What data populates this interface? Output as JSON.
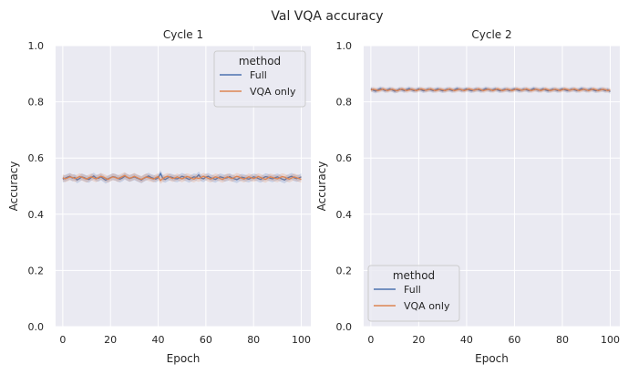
{
  "figure": {
    "title": "Val VQA accuracy"
  },
  "chart_data": [
    {
      "type": "line",
      "title": "Cycle 1",
      "xlabel": "Epoch",
      "ylabel": "Accuracy",
      "xlim": [
        -3,
        104
      ],
      "ylim": [
        0.0,
        1.0
      ],
      "xticks": [
        0,
        20,
        40,
        60,
        80,
        100
      ],
      "yticks": [
        0.0,
        0.2,
        0.4,
        0.6,
        0.8,
        1.0
      ],
      "xtick_labels": [
        "0",
        "20",
        "40",
        "60",
        "80",
        "100"
      ],
      "ytick_labels": [
        "0.0",
        "0.2",
        "0.4",
        "0.6",
        "0.8",
        "1.0"
      ],
      "grid": true,
      "legend": {
        "title": "method",
        "position": "top-right"
      },
      "series": [
        {
          "name": "Full",
          "color": "#4c72b0",
          "mean": 0.53,
          "band": 0.012,
          "values": [
            0.525,
            0.528,
            0.532,
            0.535,
            0.529,
            0.531,
            0.522,
            0.527,
            0.533,
            0.53,
            0.526,
            0.524,
            0.531,
            0.536,
            0.529,
            0.528,
            0.533,
            0.527,
            0.521,
            0.526,
            0.53,
            0.534,
            0.532,
            0.528,
            0.525,
            0.529,
            0.535,
            0.531,
            0.527,
            0.53,
            0.533,
            0.529,
            0.526,
            0.522,
            0.528,
            0.532,
            0.536,
            0.531,
            0.528,
            0.525,
            0.53,
            0.545,
            0.527,
            0.524,
            0.529,
            0.533,
            0.531,
            0.527,
            0.526,
            0.53,
            0.535,
            0.532,
            0.528,
            0.524,
            0.529,
            0.533,
            0.531,
            0.54,
            0.529,
            0.526,
            0.532,
            0.535,
            0.53,
            0.527,
            0.524,
            0.529,
            0.533,
            0.531,
            0.528,
            0.53,
            0.534,
            0.529,
            0.526,
            0.523,
            0.528,
            0.532,
            0.53,
            0.527,
            0.525,
            0.529,
            0.533,
            0.531,
            0.527,
            0.524,
            0.529,
            0.534,
            0.532,
            0.528,
            0.526,
            0.53,
            0.533,
            0.529,
            0.525,
            0.522,
            0.528,
            0.532,
            0.535,
            0.53,
            0.527,
            0.529,
            0.533
          ]
        },
        {
          "name": "VQA only",
          "color": "#dd8452",
          "mean": 0.53,
          "band": 0.012,
          "values": [
            0.53,
            0.526,
            0.529,
            0.533,
            0.531,
            0.527,
            0.529,
            0.534,
            0.532,
            0.528,
            0.525,
            0.53,
            0.533,
            0.529,
            0.526,
            0.531,
            0.535,
            0.532,
            0.528,
            0.524,
            0.529,
            0.533,
            0.531,
            0.527,
            0.53,
            0.534,
            0.538,
            0.532,
            0.528,
            0.531,
            0.535,
            0.531,
            0.527,
            0.524,
            0.529,
            0.533,
            0.53,
            0.528,
            0.525,
            0.53,
            0.534,
            0.52,
            0.528,
            0.532,
            0.535,
            0.531,
            0.527,
            0.529,
            0.533,
            0.529,
            0.526,
            0.53,
            0.534,
            0.532,
            0.528,
            0.525,
            0.53,
            0.527,
            0.531,
            0.535,
            0.532,
            0.528,
            0.525,
            0.529,
            0.533,
            0.531,
            0.527,
            0.524,
            0.529,
            0.533,
            0.53,
            0.527,
            0.531,
            0.535,
            0.532,
            0.528,
            0.525,
            0.529,
            0.533,
            0.53,
            0.527,
            0.53,
            0.534,
            0.531,
            0.527,
            0.524,
            0.529,
            0.533,
            0.531,
            0.528,
            0.526,
            0.53,
            0.534,
            0.532,
            0.528,
            0.525,
            0.529,
            0.533,
            0.53,
            0.527,
            0.524
          ]
        }
      ]
    },
    {
      "type": "line",
      "title": "Cycle 2",
      "xlabel": "Epoch",
      "ylabel": "Accuracy",
      "xlim": [
        -3,
        104
      ],
      "ylim": [
        0.0,
        1.0
      ],
      "xticks": [
        0,
        20,
        40,
        60,
        80,
        100
      ],
      "yticks": [
        0.0,
        0.2,
        0.4,
        0.6,
        0.8,
        1.0
      ],
      "xtick_labels": [
        "0",
        "20",
        "40",
        "60",
        "80",
        "100"
      ],
      "ytick_labels": [
        "0.0",
        "0.2",
        "0.4",
        "0.6",
        "0.8",
        "1.0"
      ],
      "grid": true,
      "legend": {
        "title": "method",
        "position": "bottom-left"
      },
      "series": [
        {
          "name": "Full",
          "color": "#4c72b0",
          "mean": 0.843,
          "band": 0.008,
          "values": [
            0.846,
            0.841,
            0.838,
            0.843,
            0.847,
            0.844,
            0.84,
            0.843,
            0.846,
            0.842,
            0.838,
            0.841,
            0.845,
            0.843,
            0.84,
            0.844,
            0.847,
            0.843,
            0.84,
            0.842,
            0.846,
            0.843,
            0.839,
            0.842,
            0.845,
            0.843,
            0.84,
            0.843,
            0.846,
            0.842,
            0.839,
            0.842,
            0.845,
            0.843,
            0.84,
            0.843,
            0.847,
            0.844,
            0.841,
            0.843,
            0.846,
            0.842,
            0.839,
            0.842,
            0.845,
            0.843,
            0.84,
            0.843,
            0.847,
            0.844,
            0.841,
            0.843,
            0.846,
            0.842,
            0.839,
            0.842,
            0.845,
            0.843,
            0.84,
            0.843,
            0.846,
            0.843,
            0.84,
            0.842,
            0.845,
            0.843,
            0.84,
            0.843,
            0.847,
            0.844,
            0.841,
            0.843,
            0.846,
            0.842,
            0.839,
            0.842,
            0.845,
            0.843,
            0.84,
            0.843,
            0.846,
            0.843,
            0.84,
            0.842,
            0.845,
            0.843,
            0.84,
            0.843,
            0.847,
            0.844,
            0.841,
            0.843,
            0.846,
            0.842,
            0.839,
            0.842,
            0.845,
            0.843,
            0.84,
            0.843,
            0.836
          ]
        },
        {
          "name": "VQA only",
          "color": "#dd8452",
          "mean": 0.843,
          "band": 0.008,
          "values": [
            0.842,
            0.845,
            0.843,
            0.84,
            0.842,
            0.846,
            0.843,
            0.84,
            0.843,
            0.845,
            0.842,
            0.839,
            0.843,
            0.846,
            0.843,
            0.84,
            0.842,
            0.845,
            0.843,
            0.84,
            0.843,
            0.846,
            0.844,
            0.841,
            0.843,
            0.846,
            0.843,
            0.84,
            0.842,
            0.845,
            0.843,
            0.84,
            0.843,
            0.846,
            0.843,
            0.84,
            0.842,
            0.845,
            0.843,
            0.84,
            0.843,
            0.846,
            0.844,
            0.841,
            0.843,
            0.846,
            0.843,
            0.84,
            0.842,
            0.845,
            0.843,
            0.84,
            0.843,
            0.846,
            0.843,
            0.84,
            0.842,
            0.845,
            0.843,
            0.84,
            0.843,
            0.846,
            0.844,
            0.841,
            0.843,
            0.846,
            0.843,
            0.84,
            0.842,
            0.845,
            0.843,
            0.84,
            0.843,
            0.846,
            0.843,
            0.84,
            0.842,
            0.845,
            0.843,
            0.84,
            0.843,
            0.846,
            0.844,
            0.841,
            0.843,
            0.846,
            0.843,
            0.84,
            0.842,
            0.845,
            0.843,
            0.84,
            0.843,
            0.846,
            0.843,
            0.84,
            0.842,
            0.845,
            0.843,
            0.84,
            0.842
          ]
        }
      ]
    }
  ]
}
